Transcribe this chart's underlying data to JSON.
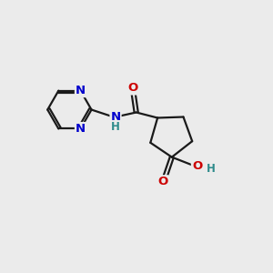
{
  "background_color": "#ebebeb",
  "atom_colors": {
    "C": "#1a1a1a",
    "N": "#0000cc",
    "O": "#cc0000",
    "H": "#2e8b8b"
  },
  "bond_color": "#1a1a1a",
  "bond_width": 1.6,
  "figsize": [
    3.0,
    3.0
  ],
  "dpi": 100,
  "xlim": [
    0.0,
    10.0
  ],
  "ylim": [
    1.5,
    9.5
  ]
}
